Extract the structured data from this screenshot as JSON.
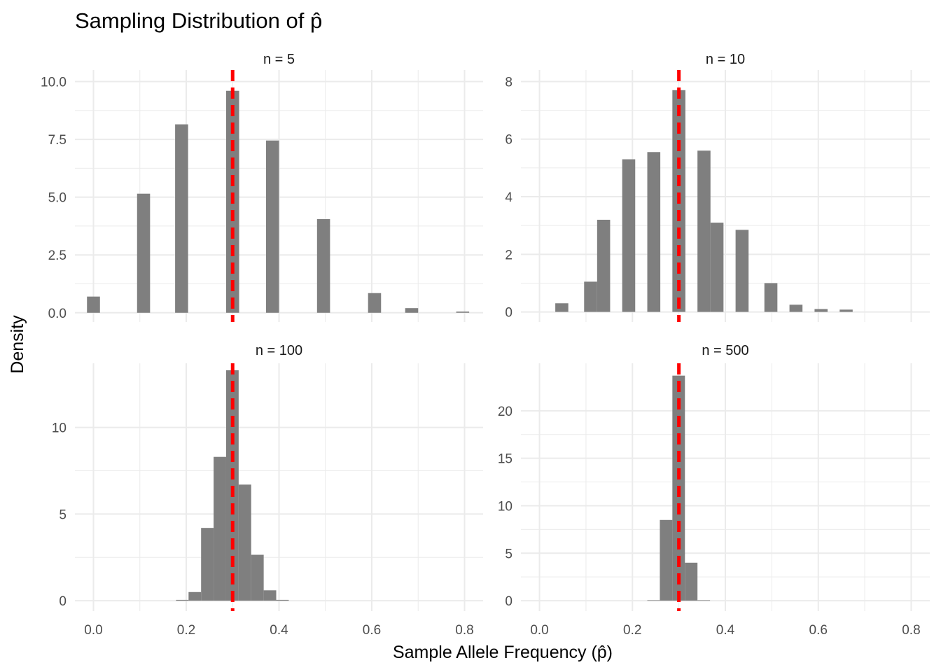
{
  "title": "Sampling Distribution of p̂",
  "xlabel": "Sample Allele Frequency (p̂)",
  "ylabel": "Density",
  "colors": {
    "bar": "#7f7f7f",
    "reference_line": "#ff0000",
    "grid": "#ebebeb"
  },
  "chart_data": {
    "type": "bar",
    "layout": "facet-grid-2x2",
    "shared_x_axis": {
      "ticks": [
        0.0,
        0.2,
        0.4,
        0.6,
        0.8
      ],
      "tick_labels": [
        "0.0",
        "0.2",
        "0.4",
        "0.6",
        "0.8"
      ],
      "xlim": [
        -0.04,
        0.84
      ]
    },
    "reference_line": {
      "x": 0.3,
      "style": "dashed"
    },
    "panels": [
      {
        "label": "n = 5",
        "ylim": [
          -0.4,
          10.5
        ],
        "y_ticks": [
          0,
          2.5,
          5,
          7.5,
          10
        ],
        "y_tick_labels": [
          "0.0",
          "2.5",
          "5.0",
          "7.5",
          "10.0"
        ],
        "bars": [
          {
            "x0": -0.014,
            "x1": 0.014,
            "y": 0.7
          },
          {
            "x0": 0.094,
            "x1": 0.122,
            "y": 5.15
          },
          {
            "x0": 0.176,
            "x1": 0.204,
            "y": 8.15
          },
          {
            "x0": 0.286,
            "x1": 0.314,
            "y": 9.6
          },
          {
            "x0": 0.372,
            "x1": 0.4,
            "y": 7.45
          },
          {
            "x0": 0.482,
            "x1": 0.51,
            "y": 4.05
          },
          {
            "x0": 0.592,
            "x1": 0.62,
            "y": 0.85
          },
          {
            "x0": 0.672,
            "x1": 0.7,
            "y": 0.2
          },
          {
            "x0": 0.782,
            "x1": 0.81,
            "y": 0.05
          }
        ]
      },
      {
        "label": "n = 10",
        "ylim": [
          -0.35,
          8.4
        ],
        "y_ticks": [
          0,
          2,
          4,
          6,
          8
        ],
        "y_tick_labels": [
          "0",
          "2",
          "4",
          "6",
          "8"
        ],
        "bars": [
          {
            "x0": 0.034,
            "x1": 0.062,
            "y": 0.3
          },
          {
            "x0": 0.096,
            "x1": 0.124,
            "y": 1.05
          },
          {
            "x0": 0.124,
            "x1": 0.152,
            "y": 3.2
          },
          {
            "x0": 0.178,
            "x1": 0.206,
            "y": 5.3
          },
          {
            "x0": 0.232,
            "x1": 0.26,
            "y": 5.55
          },
          {
            "x0": 0.286,
            "x1": 0.314,
            "y": 7.7
          },
          {
            "x0": 0.34,
            "x1": 0.368,
            "y": 5.6
          },
          {
            "x0": 0.368,
            "x1": 0.396,
            "y": 3.1
          },
          {
            "x0": 0.422,
            "x1": 0.45,
            "y": 2.85
          },
          {
            "x0": 0.484,
            "x1": 0.512,
            "y": 1.0
          },
          {
            "x0": 0.538,
            "x1": 0.566,
            "y": 0.25
          },
          {
            "x0": 0.592,
            "x1": 0.62,
            "y": 0.1
          },
          {
            "x0": 0.646,
            "x1": 0.674,
            "y": 0.08
          }
        ]
      },
      {
        "label": "n = 100",
        "ylim": [
          -0.6,
          13.7
        ],
        "y_ticks": [
          0,
          5,
          10
        ],
        "y_tick_labels": [
          "0",
          "5",
          "10"
        ],
        "bars": [
          {
            "x0": 0.178,
            "x1": 0.205,
            "y": 0.05
          },
          {
            "x0": 0.205,
            "x1": 0.232,
            "y": 0.5
          },
          {
            "x0": 0.232,
            "x1": 0.259,
            "y": 4.2
          },
          {
            "x0": 0.259,
            "x1": 0.286,
            "y": 8.3
          },
          {
            "x0": 0.286,
            "x1": 0.313,
            "y": 13.3
          },
          {
            "x0": 0.313,
            "x1": 0.34,
            "y": 6.7
          },
          {
            "x0": 0.34,
            "x1": 0.367,
            "y": 2.65
          },
          {
            "x0": 0.367,
            "x1": 0.394,
            "y": 0.6
          },
          {
            "x0": 0.394,
            "x1": 0.421,
            "y": 0.05
          }
        ]
      },
      {
        "label": "n = 500",
        "ylim": [
          -1.1,
          25.0
        ],
        "y_ticks": [
          0,
          5,
          10,
          15,
          20
        ],
        "y_tick_labels": [
          "0",
          "5",
          "10",
          "15",
          "20"
        ],
        "bars": [
          {
            "x0": 0.232,
            "x1": 0.259,
            "y": 0.05
          },
          {
            "x0": 0.259,
            "x1": 0.286,
            "y": 8.5
          },
          {
            "x0": 0.286,
            "x1": 0.313,
            "y": 23.7
          },
          {
            "x0": 0.313,
            "x1": 0.34,
            "y": 4.0
          },
          {
            "x0": 0.34,
            "x1": 0.367,
            "y": 0.05
          }
        ]
      }
    ]
  }
}
